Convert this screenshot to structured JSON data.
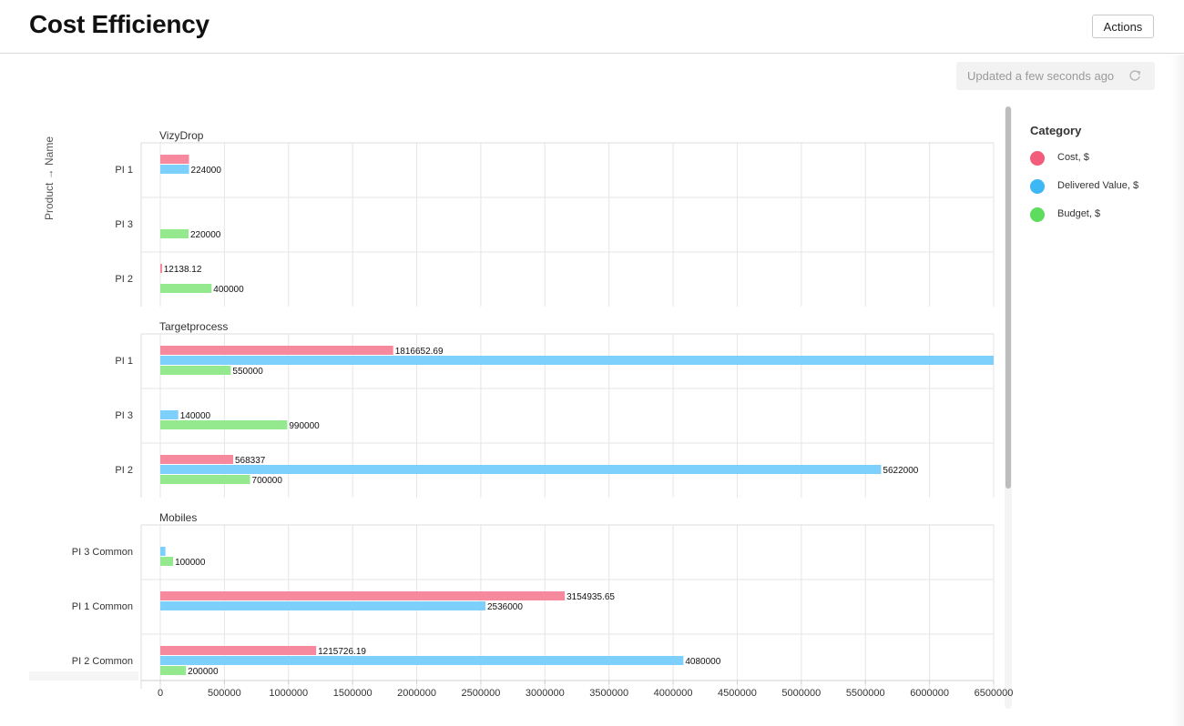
{
  "page": {
    "title": "Cost Efficiency"
  },
  "toolbar": {
    "actions_label": "Actions",
    "updated_text": "Updated a few seconds ago",
    "refresh_icon": "refresh-icon"
  },
  "legend": {
    "title": "Category",
    "items": [
      {
        "label": "Cost, $",
        "color": "#f25c7a"
      },
      {
        "label": "Delivered Value, $",
        "color": "#3db8f5"
      },
      {
        "label": "Budget, $",
        "color": "#5ddc5d"
      }
    ]
  },
  "chart_data": {
    "type": "bar",
    "orientation": "horizontal",
    "ylabel": "Product → Name",
    "xlim": [
      0,
      6500000
    ],
    "x_ticks": [
      0,
      500000,
      1000000,
      1500000,
      2000000,
      2500000,
      3000000,
      3500000,
      4000000,
      4500000,
      5000000,
      5500000,
      6000000,
      6500000
    ],
    "x_tick_labels": [
      "0",
      "500000",
      "1000000",
      "1500000",
      "2000000",
      "2500000",
      "3000000",
      "3500000",
      "4000000",
      "4500000",
      "5000000",
      "5500000",
      "6000000",
      "6500000"
    ],
    "grid": true,
    "legend_position": "right",
    "series": [
      {
        "name": "Cost, $",
        "color": "#f7899e"
      },
      {
        "name": "Delivered Value, $",
        "color": "#7dd0fb"
      },
      {
        "name": "Budget, $",
        "color": "#94e88d"
      }
    ],
    "groups": [
      {
        "name": "VizyDrop",
        "rows": [
          {
            "label": "PI 1",
            "values": [
              224000,
              224000,
              null
            ],
            "labels": [
              "",
              "224000",
              ""
            ]
          },
          {
            "label": "PI 3",
            "values": [
              null,
              null,
              220000
            ],
            "labels": [
              "",
              "",
              "220000"
            ]
          },
          {
            "label": "PI 2",
            "values": [
              12138.12,
              null,
              400000
            ],
            "labels": [
              "12138.12",
              "",
              "400000"
            ]
          }
        ]
      },
      {
        "name": "Targetprocess",
        "rows": [
          {
            "label": "PI 1",
            "values": [
              1816652.69,
              6600000,
              550000
            ],
            "labels": [
              "1816652.69",
              "",
              "550000"
            ]
          },
          {
            "label": "PI 3",
            "values": [
              null,
              140000,
              990000
            ],
            "labels": [
              "",
              "140000",
              "990000"
            ]
          },
          {
            "label": "PI 2",
            "values": [
              568337,
              5622000,
              700000
            ],
            "labels": [
              "568337",
              "5622000",
              "700000"
            ]
          }
        ]
      },
      {
        "name": "Mobiles",
        "rows": [
          {
            "label": "PI 3 Common",
            "values": [
              null,
              40000,
              100000
            ],
            "labels": [
              "",
              "",
              "100000"
            ]
          },
          {
            "label": "PI 1 Common",
            "values": [
              3154935.65,
              2536000,
              null
            ],
            "labels": [
              "3154935.65",
              "2536000",
              ""
            ]
          },
          {
            "label": "PI 2 Common",
            "values": [
              1215726.19,
              4080000,
              200000
            ],
            "labels": [
              "1215726.19",
              "4080000",
              "200000"
            ]
          }
        ]
      }
    ]
  }
}
